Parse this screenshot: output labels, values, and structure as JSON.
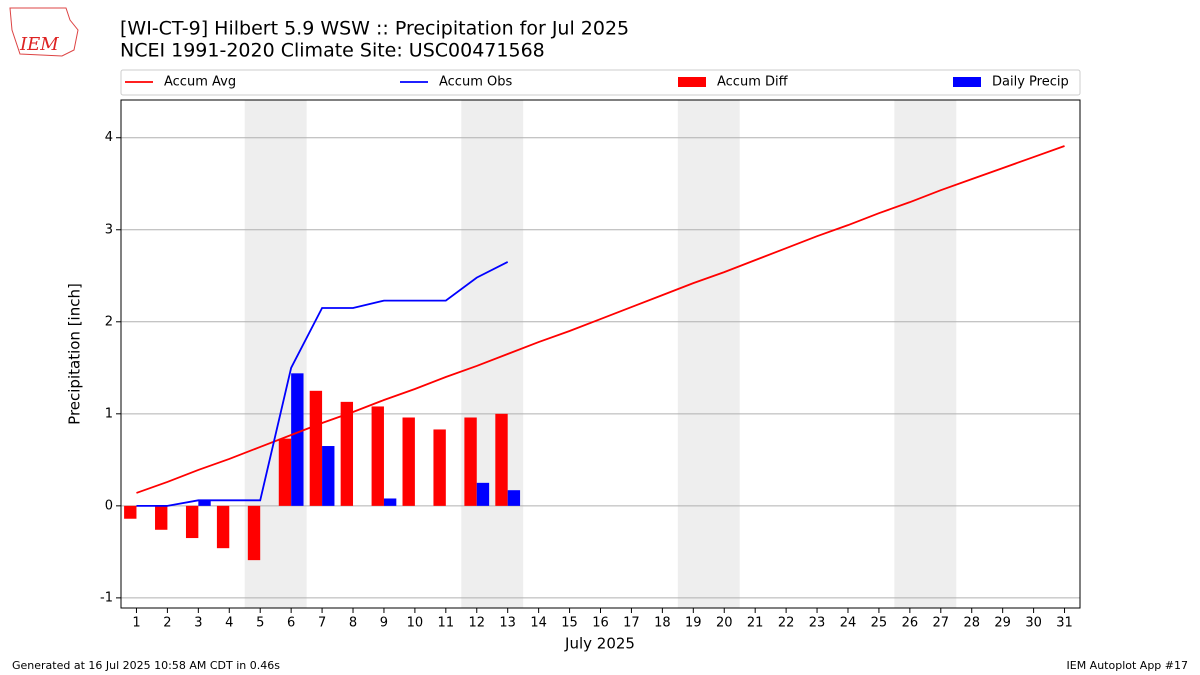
{
  "chart_data": {
    "type": "combo",
    "title": "[WI-CT-9] Hilbert 5.9 WSW :: Precipitation for Jul 2025",
    "subtitle": "NCEI 1991-2020 Climate Site: USC00471568",
    "xlabel": "July 2025",
    "ylabel": "Precipitation [inch]",
    "logo_text": "IEM",
    "footer_left": "Generated at 16 Jul 2025 10:58 AM CDT in 0.46s",
    "footer_right": "IEM Autoplot App #17",
    "x": [
      1,
      2,
      3,
      4,
      5,
      6,
      7,
      8,
      9,
      10,
      11,
      12,
      13,
      14,
      15,
      16,
      17,
      18,
      19,
      20,
      21,
      22,
      23,
      24,
      25,
      26,
      27,
      28,
      29,
      30,
      31
    ],
    "xlim": [
      0.5,
      31.5
    ],
    "xticks": [
      1,
      2,
      3,
      4,
      5,
      6,
      7,
      8,
      9,
      10,
      11,
      12,
      13,
      14,
      15,
      16,
      17,
      18,
      19,
      20,
      21,
      22,
      23,
      24,
      25,
      26,
      27,
      28,
      29,
      30,
      31
    ],
    "ylim": [
      -1.11,
      4.41
    ],
    "yticks": [
      -1,
      0,
      1,
      2,
      3,
      4
    ],
    "grid": true,
    "legend": "top",
    "shade_color": "#eeeeee",
    "shade_spans": [
      [
        4.5,
        6.5
      ],
      [
        11.5,
        13.5
      ],
      [
        18.5,
        20.5
      ],
      [
        25.5,
        27.5
      ]
    ],
    "series": [
      {
        "name": "Accum Avg",
        "type": "line",
        "color": "#ff0000",
        "values": [
          0.14,
          0.26,
          0.39,
          0.51,
          0.64,
          0.77,
          0.9,
          1.02,
          1.15,
          1.27,
          1.4,
          1.52,
          1.65,
          1.78,
          1.9,
          2.03,
          2.16,
          2.29,
          2.42,
          2.54,
          2.67,
          2.8,
          2.93,
          3.05,
          3.18,
          3.3,
          3.43,
          3.55,
          3.67,
          3.79,
          3.91
        ]
      },
      {
        "name": "Accum Obs",
        "type": "line",
        "color": "#0000ff",
        "values": [
          0,
          0,
          0.06,
          0.06,
          0.06,
          1.5,
          2.15,
          2.15,
          2.23,
          2.23,
          2.23,
          2.48,
          2.65,
          null,
          null,
          null,
          null,
          null,
          null,
          null,
          null,
          null,
          null,
          null,
          null,
          null,
          null,
          null,
          null,
          null,
          null
        ]
      },
      {
        "name": "Accum Diff",
        "type": "bar",
        "color": "#ff0000",
        "values": [
          -0.14,
          -0.26,
          -0.35,
          -0.46,
          -0.59,
          0.73,
          1.25,
          1.13,
          1.08,
          0.96,
          0.83,
          0.96,
          1.0,
          null,
          null,
          null,
          null,
          null,
          null,
          null,
          null,
          null,
          null,
          null,
          null,
          null,
          null,
          null,
          null,
          null,
          null
        ]
      },
      {
        "name": "Daily Precip",
        "type": "bar",
        "color": "#0000ff",
        "values": [
          0,
          0,
          0.06,
          0,
          0,
          1.44,
          0.65,
          0,
          0.08,
          0,
          0,
          0.25,
          0.17,
          null,
          null,
          null,
          null,
          null,
          null,
          null,
          null,
          null,
          null,
          null,
          null,
          null,
          null,
          null,
          null,
          null,
          null
        ]
      }
    ]
  }
}
